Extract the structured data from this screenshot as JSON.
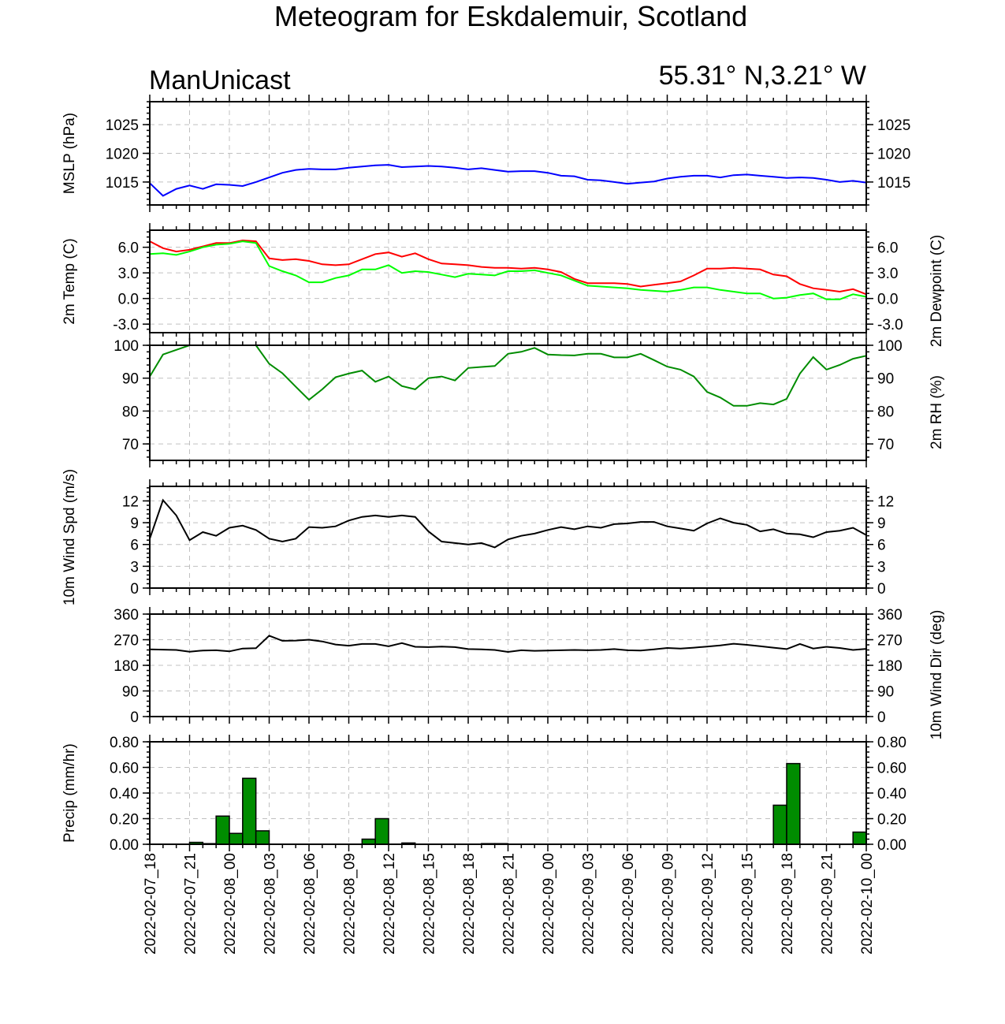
{
  "title": "Meteogram for Eskdalemuir, Scotland",
  "left_label": "ManUnicast",
  "right_label": "55.31° N,3.21° W",
  "x_tick_labels": [
    "2022-02-07_18",
    "2022-02-07_21",
    "2022-02-08_00",
    "2022-02-08_03",
    "2022-02-08_06",
    "2022-02-08_09",
    "2022-02-08_12",
    "2022-02-08_15",
    "2022-02-08_18",
    "2022-02-08_21",
    "2022-02-09_00",
    "2022-02-09_03",
    "2022-02-09_06",
    "2022-02-09_09",
    "2022-02-09_12",
    "2022-02-09_15",
    "2022-02-09_18",
    "2022-02-09_21",
    "2022-02-10_00"
  ],
  "chart_data": [
    {
      "type": "line",
      "ylabel": "MSLP (hPa)",
      "ylim": [
        1011,
        1029
      ],
      "yticks": [
        1015,
        1020,
        1025
      ],
      "ytick_labels": [
        "1015",
        "1020",
        "1025"
      ],
      "right_ytick_labels": [
        "1015",
        "1020",
        "1025"
      ],
      "grid": true,
      "series": [
        {
          "color": "#0000ff",
          "values": [
            1014.8,
            1012.6,
            1013.8,
            1014.4,
            1013.8,
            1014.6,
            1014.5,
            1014.3,
            1015.0,
            1015.8,
            1016.6,
            1017.1,
            1017.3,
            1017.2,
            1017.2,
            1017.5,
            1017.7,
            1017.9,
            1018.0,
            1017.6,
            1017.7,
            1017.8,
            1017.7,
            1017.5,
            1017.2,
            1017.4,
            1017.1,
            1016.8,
            1016.9,
            1016.9,
            1016.6,
            1016.1,
            1016.0,
            1015.4,
            1015.3,
            1015.0,
            1014.7,
            1014.9,
            1015.1,
            1015.6,
            1015.9,
            1016.1,
            1016.1,
            1015.8,
            1016.2,
            1016.3,
            1016.1,
            1015.9,
            1015.7,
            1015.8,
            1015.7,
            1015.4,
            1015.0,
            1015.2,
            1014.9
          ]
        }
      ]
    },
    {
      "type": "line",
      "ylabel": "2m Temp (C)",
      "ylabel_right": "2m Dewpoint (C)",
      "ylim": [
        -4,
        8
      ],
      "yticks": [
        -3,
        0,
        3,
        6
      ],
      "ytick_labels": [
        "-3.0",
        "0.0",
        "3.0",
        "6.0"
      ],
      "right_ytick_labels": [
        "-3.0",
        "0.0",
        "3.0",
        "6.0"
      ],
      "grid": true,
      "series": [
        {
          "color": "#ff0000",
          "values": [
            6.7,
            5.9,
            5.5,
            5.7,
            6.1,
            6.5,
            6.5,
            6.8,
            6.7,
            4.7,
            4.5,
            4.6,
            4.4,
            4.0,
            3.9,
            4.0,
            4.6,
            5.2,
            5.4,
            4.9,
            5.3,
            4.6,
            4.1,
            4.0,
            3.9,
            3.7,
            3.6,
            3.6,
            3.5,
            3.6,
            3.4,
            3.1,
            2.3,
            1.8,
            1.8,
            1.8,
            1.7,
            1.4,
            1.6,
            1.8,
            2.0,
            2.7,
            3.5,
            3.5,
            3.6,
            3.5,
            3.4,
            2.8,
            2.6,
            1.7,
            1.2,
            1.0,
            0.8,
            1.1,
            0.5
          ]
        },
        {
          "color": "#00ff00",
          "values": [
            5.2,
            5.3,
            5.1,
            5.5,
            6.0,
            6.3,
            6.4,
            6.7,
            6.5,
            3.8,
            3.2,
            2.7,
            1.9,
            1.9,
            2.4,
            2.7,
            3.4,
            3.4,
            3.9,
            3.0,
            3.2,
            3.1,
            2.8,
            2.5,
            2.9,
            2.8,
            2.7,
            3.2,
            3.2,
            3.3,
            3.0,
            2.7,
            2.1,
            1.5,
            1.4,
            1.3,
            1.2,
            1.0,
            0.9,
            0.8,
            1.0,
            1.3,
            1.3,
            1.0,
            0.8,
            0.6,
            0.6,
            0.0,
            0.1,
            0.4,
            0.6,
            -0.1,
            -0.1,
            0.5,
            0.2
          ]
        }
      ]
    },
    {
      "type": "line",
      "ylabel": "",
      "ylabel_right": "2m RH (%)",
      "ylim": [
        65,
        100
      ],
      "yticks": [
        70,
        80,
        90,
        100
      ],
      "ytick_labels": [
        "70",
        "80",
        "90",
        "100"
      ],
      "right_ytick_labels": [
        "70",
        "80",
        "90",
        "100"
      ],
      "grid": true,
      "series": [
        {
          "color": "#008c00",
          "values": [
            90.5,
            97.2,
            98.6,
            100,
            100,
            100,
            100,
            100,
            100,
            94.4,
            91.5,
            87.4,
            83.4,
            86.6,
            90.3,
            91.4,
            92.3,
            88.9,
            90.5,
            87.6,
            86.6,
            90.0,
            90.5,
            89.3,
            93.1,
            93.4,
            93.7,
            97.4,
            98.0,
            99.2,
            97.2,
            97.0,
            96.9,
            97.4,
            97.4,
            96.3,
            96.3,
            97.4,
            95.5,
            93.5,
            92.6,
            90.5,
            85.8,
            84.1,
            81.6,
            81.6,
            82.4,
            82.0,
            83.7,
            91.4,
            96.4,
            92.6,
            94.0,
            95.9,
            96.8
          ]
        }
      ]
    },
    {
      "type": "line",
      "ylabel": "10m Wind Spd (m/s)",
      "ylim": [
        0,
        14
      ],
      "yticks": [
        0,
        3,
        6,
        9,
        12
      ],
      "ytick_labels": [
        "0",
        "3",
        "6",
        "9",
        "12"
      ],
      "right_ytick_labels": [
        "0",
        "3",
        "6",
        "9",
        "12"
      ],
      "grid": true,
      "series": [
        {
          "color": "#000000",
          "values": [
            6.8,
            12.1,
            10.0,
            6.6,
            7.7,
            7.2,
            8.3,
            8.6,
            8.0,
            6.8,
            6.4,
            6.8,
            8.4,
            8.3,
            8.5,
            9.3,
            9.8,
            10.0,
            9.8,
            10.0,
            9.8,
            7.8,
            6.4,
            6.2,
            6.0,
            6.2,
            5.6,
            6.7,
            7.2,
            7.5,
            8.0,
            8.4,
            8.1,
            8.5,
            8.3,
            8.8,
            8.9,
            9.1,
            9.1,
            8.5,
            8.2,
            7.9,
            8.9,
            9.6,
            9.0,
            8.7,
            7.8,
            8.1,
            7.5,
            7.4,
            7.0,
            7.7,
            7.9,
            8.3,
            7.3
          ]
        }
      ]
    },
    {
      "type": "line",
      "ylabel": "",
      "ylabel_right": "10m Wind Dir (deg)",
      "ylim": [
        0,
        360
      ],
      "yticks": [
        0,
        90,
        180,
        270,
        360
      ],
      "ytick_labels": [
        "0",
        "90",
        "180",
        "270",
        "360"
      ],
      "right_ytick_labels": [
        "0",
        "90",
        "180",
        "270",
        "360"
      ],
      "grid": true,
      "series": [
        {
          "color": "#000000",
          "values": [
            236,
            235,
            234,
            228,
            232,
            233,
            229,
            239,
            240,
            284,
            266,
            267,
            270,
            264,
            253,
            249,
            255,
            255,
            247,
            258,
            245,
            244,
            246,
            244,
            237,
            236,
            234,
            227,
            233,
            231,
            232,
            233,
            234,
            233,
            234,
            237,
            233,
            232,
            236,
            241,
            239,
            242,
            246,
            250,
            256,
            252,
            247,
            242,
            237,
            255,
            239,
            245,
            241,
            234,
            238
          ]
        }
      ]
    },
    {
      "type": "bar",
      "ylabel": "Precip (mm/hr)",
      "ylim": [
        0,
        0.8
      ],
      "yticks": [
        0,
        0.2,
        0.4,
        0.6,
        0.8
      ],
      "ytick_labels": [
        "0.00",
        "0.20",
        "0.40",
        "0.60",
        "0.80"
      ],
      "right_ytick_labels": [
        "0.00",
        "0.20",
        "0.40",
        "0.60",
        "0.80"
      ],
      "grid": true,
      "bar_color": "#008c00",
      "values": [
        0,
        0,
        0,
        0,
        0.015,
        0.005,
        0.22,
        0.085,
        0.515,
        0.105,
        0,
        0,
        0,
        0,
        0,
        0,
        0,
        0.04,
        0.2,
        0,
        0.01,
        0,
        0,
        0,
        0,
        0,
        0.005,
        0.005,
        0,
        0,
        0,
        0,
        0,
        0,
        0,
        0,
        0,
        0,
        0,
        0,
        0,
        0,
        0,
        0,
        0,
        0,
        0,
        0,
        0.305,
        0.63,
        0,
        0,
        0,
        0,
        0.095
      ]
    }
  ]
}
